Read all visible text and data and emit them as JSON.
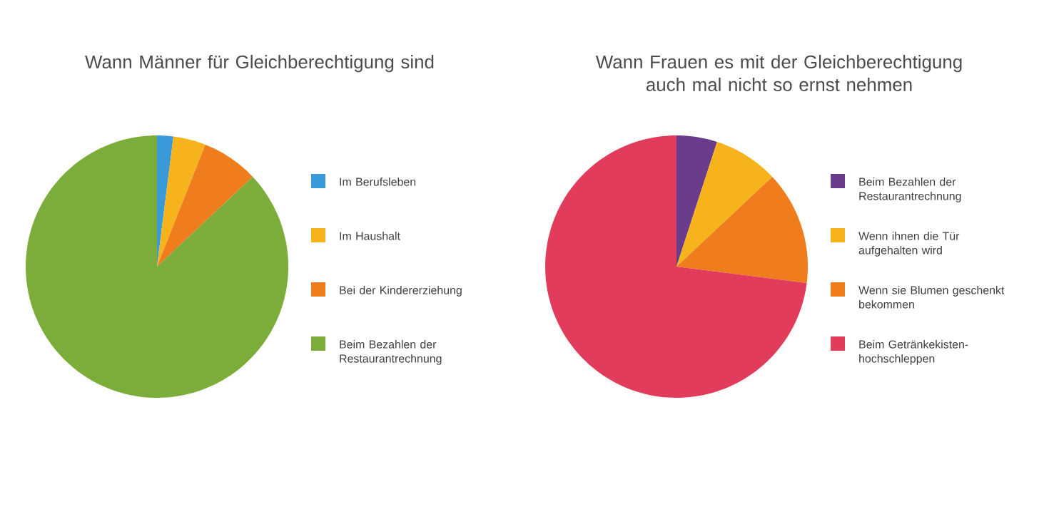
{
  "chart_data": [
    {
      "type": "pie",
      "title": "Wann Männer für Gleichberechtigung sind",
      "categories": [
        "Im Berufsleben",
        "Im Haushalt",
        "Bei der Kindererziehung",
        "Beim Bezahlen der Restaurantrechnung"
      ],
      "values": [
        2,
        4,
        7,
        87
      ],
      "colors": [
        "#3a9ad9",
        "#f6b31b",
        "#ef7d1d",
        "#7cad3a"
      ],
      "legend": "right"
    },
    {
      "type": "pie",
      "title": "Wann Frauen es mit der Gleichberechtigung auch mal nicht so ernst nehmen",
      "categories": [
        "Beim Bezahlen der Restaurantrechnung",
        "Wenn ihnen die Tür aufgehalten wird",
        "Wenn sie Blumen geschenkt bekommen",
        "Beim Getränkekisten-hochschleppen"
      ],
      "values": [
        5,
        8,
        14,
        73
      ],
      "colors": [
        "#6a3d8a",
        "#f6b31b",
        "#ef7d1d",
        "#e23c5c"
      ],
      "legend": "right"
    }
  ]
}
